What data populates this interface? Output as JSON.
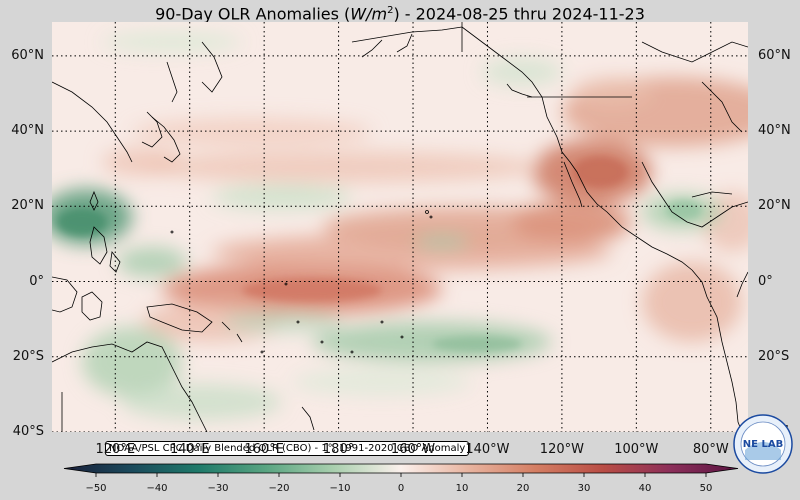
{
  "title": {
    "prefix": "90-Day OLR Anomalies (",
    "unit_base": "W/m",
    "unit_exp": "2",
    "suffix": ") - 2024-08-25 thru 2024-11-23"
  },
  "map": {
    "lon_range_deg_east": [
      103,
      290
    ],
    "lat_range": [
      -40,
      69
    ],
    "projection": "equirectangular",
    "graticule": "dotted",
    "lat_labels": [
      "60°N",
      "40°N",
      "20°N",
      "0°",
      "20°S",
      "40°S"
    ],
    "lat_values": [
      60,
      40,
      20,
      0,
      -20,
      -40
    ],
    "lon_labels": [
      "120°E",
      "140°E",
      "160°E",
      "180°",
      "160°W",
      "140°W",
      "120°W",
      "100°W",
      "80°W"
    ],
    "lon_values": [
      120,
      140,
      160,
      180,
      200,
      220,
      240,
      260,
      280
    ],
    "anomaly_regions": [
      {
        "name": "central-pacific-positive",
        "lon": 190,
        "lat": 0,
        "value": 28
      },
      {
        "name": "mexico-positive",
        "lon": 253,
        "lat": 28,
        "value": 30
      },
      {
        "name": "south-atlantic-positive",
        "lon": 282,
        "lat": 35,
        "value": 20
      },
      {
        "name": "philippine-negative",
        "lon": 124,
        "lat": 18,
        "value": -25
      },
      {
        "name": "spcz-negative",
        "lon": 200,
        "lat": -12,
        "value": -15
      },
      {
        "name": "gulf-negative",
        "lon": 272,
        "lat": 22,
        "value": -15
      }
    ]
  },
  "credit": "NOAA/PSL CPC Daily Blended OLR (CBO) - 1°, 1991-2020 CBO Anomaly",
  "colorbar": {
    "ticks": [
      "−50",
      "−40",
      "−30",
      "−20",
      "−10",
      "0",
      "10",
      "20",
      "30",
      "40",
      "50"
    ],
    "tick_values": [
      -50,
      -40,
      -30,
      -20,
      -10,
      0,
      10,
      20,
      30,
      40,
      50
    ],
    "range": [
      -50,
      50
    ],
    "colors": [
      "#1a1f3a",
      "#1b4a5c",
      "#1f7a6a",
      "#5aa582",
      "#a9cfae",
      "#fbf0ec",
      "#e8b4a0",
      "#d47e63",
      "#b94d45",
      "#8c2f5a",
      "#5a1442"
    ]
  },
  "logo": {
    "text": "NE LAB",
    "brand_color": "#1b4aa0"
  }
}
